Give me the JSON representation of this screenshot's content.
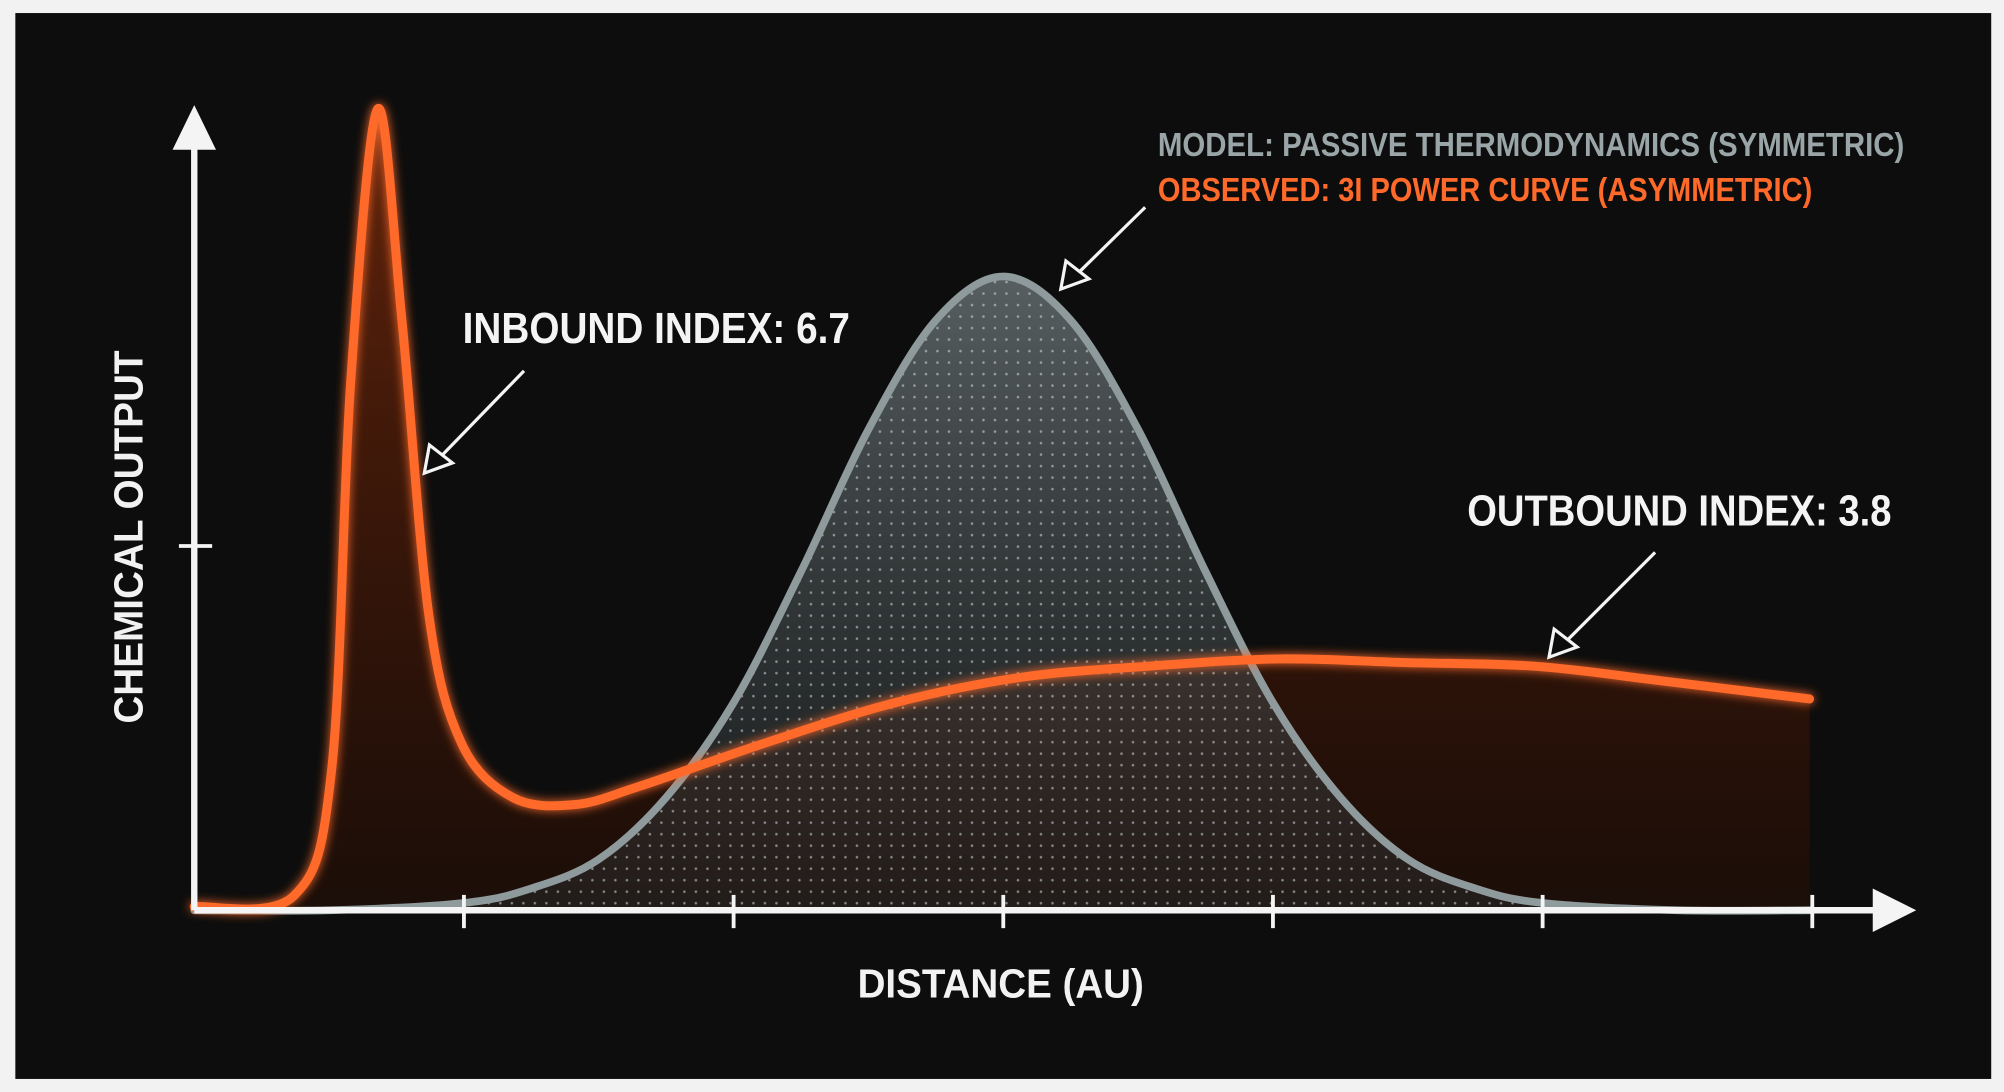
{
  "chart_data": {
    "type": "line",
    "xlabel": "DISTANCE (AU)",
    "ylabel": "CHEMICAL OUTPUT",
    "xlim": [
      0,
      6.3
    ],
    "ylim": [
      0,
      2.2
    ],
    "xticks": [
      1,
      2,
      3,
      4,
      5,
      6
    ],
    "yticks": [
      1
    ],
    "series": [
      {
        "name": "MODEL: PASSIVE THERMODYNAMICS (SYMMETRIC)",
        "color": "#8f9a9c",
        "x": [
          0,
          0.5,
          1,
          1.25,
          1.5,
          1.75,
          2,
          2.25,
          2.5,
          2.75,
          3,
          3.25,
          3.5,
          3.75,
          4,
          4.25,
          4.5,
          4.75,
          5,
          5.5,
          6
        ],
        "values": [
          0,
          0,
          0.02,
          0.06,
          0.14,
          0.31,
          0.57,
          0.93,
          1.32,
          1.62,
          1.74,
          1.62,
          1.32,
          0.93,
          0.57,
          0.31,
          0.14,
          0.06,
          0.02,
          0,
          0
        ]
      },
      {
        "name": "OBSERVED: 3I POWER CURVE (ASYMMETRIC)",
        "color": "#ff6a2a",
        "x": [
          0,
          0.37,
          0.51,
          0.58,
          0.68,
          0.77,
          0.87,
          0.99,
          1.18,
          1.41,
          1.65,
          2.12,
          2.6,
          3.07,
          3.54,
          4.02,
          4.49,
          4.97,
          5.44,
          5.99
        ],
        "values": [
          0.01,
          0.04,
          0.39,
          1.45,
          2.2,
          1.62,
          0.81,
          0.46,
          0.31,
          0.29,
          0.34,
          0.46,
          0.57,
          0.64,
          0.67,
          0.69,
          0.68,
          0.67,
          0.63,
          0.58
        ]
      }
    ],
    "annotations": [
      "INBOUND INDEX: 6.7",
      "OUTBOUND INDEX: 3.8"
    ]
  }
}
